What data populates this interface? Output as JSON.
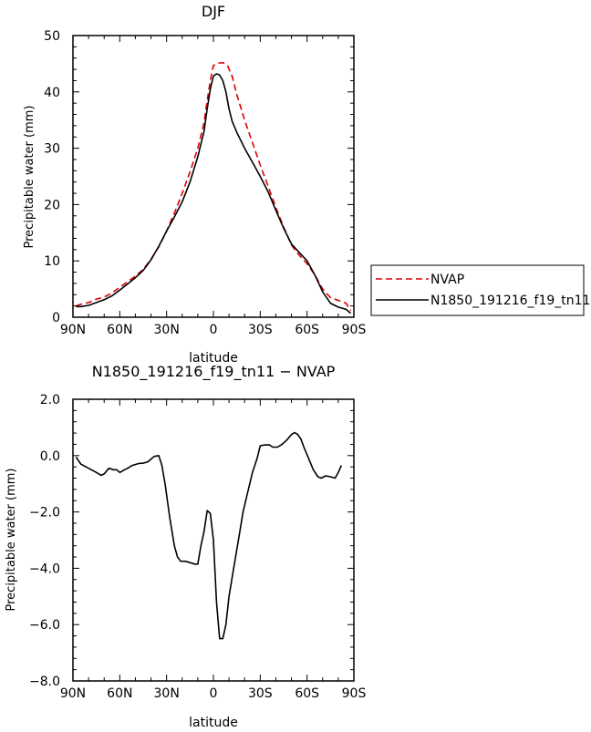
{
  "chart_data": [
    {
      "type": "line",
      "title": "DJF",
      "xlabel": "latitude",
      "ylabel": "Precipitable water (mm)",
      "xlim": [
        -90,
        90
      ],
      "ylim": [
        0,
        50
      ],
      "x_reversed": true,
      "xticks": [
        -90,
        -60,
        -30,
        0,
        30,
        60,
        90
      ],
      "xtick_labels": [
        "90N",
        "60N",
        "30N",
        "0",
        "30S",
        "60S",
        "90S"
      ],
      "yticks": [
        0,
        10,
        20,
        30,
        40,
        50
      ],
      "ytick_labels": [
        "0",
        "10",
        "20",
        "30",
        "40",
        "50"
      ],
      "grid": false,
      "legend_position": "right",
      "series": [
        {
          "name": "NVAP",
          "color": "#dd0000",
          "dash": "dashed",
          "points": [
            [
              -88,
              2.0
            ],
            [
              -85,
              2.3
            ],
            [
              -80,
              2.6
            ],
            [
              -75,
              3.2
            ],
            [
              -70,
              3.6
            ],
            [
              -65,
              4.3
            ],
            [
              -60,
              5.3
            ],
            [
              -55,
              6.3
            ],
            [
              -50,
              7.3
            ],
            [
              -45,
              8.5
            ],
            [
              -40,
              10.3
            ],
            [
              -35,
              12.5
            ],
            [
              -30,
              15.3
            ],
            [
              -25,
              18.5
            ],
            [
              -20,
              22.0
            ],
            [
              -15,
              25.8
            ],
            [
              -10,
              30.0
            ],
            [
              -6,
              34.5
            ],
            [
              -4,
              38.5
            ],
            [
              -2,
              42.0
            ],
            [
              0,
              44.7
            ],
            [
              3,
              45.1
            ],
            [
              6,
              45.2
            ],
            [
              9,
              44.7
            ],
            [
              12,
              42.8
            ],
            [
              15,
              39.5
            ],
            [
              20,
              35.0
            ],
            [
              25,
              31.0
            ],
            [
              30,
              27.0
            ],
            [
              35,
              23.3
            ],
            [
              40,
              19.5
            ],
            [
              45,
              16.0
            ],
            [
              50,
              12.8
            ],
            [
              55,
              11.0
            ],
            [
              60,
              9.5
            ],
            [
              65,
              7.5
            ],
            [
              70,
              5.0
            ],
            [
              75,
              3.5
            ],
            [
              80,
              3.0
            ],
            [
              85,
              2.5
            ],
            [
              88,
              1.2
            ]
          ]
        },
        {
          "name": "N1850_191216_f19_tn11",
          "color": "#000000",
          "dash": "solid",
          "points": [
            [
              -88,
              1.9
            ],
            [
              -85,
              1.9
            ],
            [
              -80,
              2.1
            ],
            [
              -75,
              2.6
            ],
            [
              -70,
              3.1
            ],
            [
              -65,
              3.8
            ],
            [
              -60,
              4.8
            ],
            [
              -55,
              5.9
            ],
            [
              -50,
              7.0
            ],
            [
              -45,
              8.3
            ],
            [
              -40,
              10.2
            ],
            [
              -35,
              12.6
            ],
            [
              -30,
              15.3
            ],
            [
              -25,
              17.8
            ],
            [
              -20,
              20.5
            ],
            [
              -15,
              24.0
            ],
            [
              -10,
              28.5
            ],
            [
              -6,
              33.0
            ],
            [
              -4,
              37.0
            ],
            [
              -2,
              40.5
            ],
            [
              0,
              42.8
            ],
            [
              2,
              43.2
            ],
            [
              4,
              43.0
            ],
            [
              6,
              42.0
            ],
            [
              8,
              40.0
            ],
            [
              10,
              37.0
            ],
            [
              12,
              34.8
            ],
            [
              15,
              32.8
            ],
            [
              20,
              30.0
            ],
            [
              25,
              27.5
            ],
            [
              30,
              25.0
            ],
            [
              35,
              22.3
            ],
            [
              40,
              19.0
            ],
            [
              45,
              15.8
            ],
            [
              50,
              13.0
            ],
            [
              55,
              11.5
            ],
            [
              60,
              10.0
            ],
            [
              65,
              7.5
            ],
            [
              70,
              4.5
            ],
            [
              75,
              2.5
            ],
            [
              80,
              1.8
            ],
            [
              85,
              1.4
            ],
            [
              88,
              0.7
            ]
          ]
        }
      ]
    },
    {
      "type": "line",
      "title": "N1850_191216_f19_tn11 − NVAP",
      "xlabel": "latitude",
      "ylabel": "Precipitable water (mm)",
      "xlim": [
        -90,
        90
      ],
      "ylim": [
        -8,
        2
      ],
      "x_reversed": true,
      "xticks": [
        -90,
        -60,
        -30,
        0,
        30,
        60,
        90
      ],
      "xtick_labels": [
        "90N",
        "60N",
        "30N",
        "0",
        "30S",
        "60S",
        "90S"
      ],
      "yticks": [
        -8,
        -6,
        -4,
        -2,
        0,
        2
      ],
      "ytick_labels": [
        "−8.0",
        "−6.0",
        "−4.0",
        "−2.0",
        "0.0",
        "2.0"
      ],
      "grid": false,
      "series": [
        {
          "color": "#000000",
          "dash": "solid",
          "points": [
            [
              -88,
              -0.05
            ],
            [
              -85,
              -0.3
            ],
            [
              -80,
              -0.45
            ],
            [
              -75,
              -0.6
            ],
            [
              -72,
              -0.7
            ],
            [
              -70,
              -0.65
            ],
            [
              -67,
              -0.45
            ],
            [
              -64,
              -0.5
            ],
            [
              -62,
              -0.5
            ],
            [
              -60,
              -0.6
            ],
            [
              -57,
              -0.5
            ],
            [
              -55,
              -0.45
            ],
            [
              -52,
              -0.35
            ],
            [
              -48,
              -0.28
            ],
            [
              -45,
              -0.27
            ],
            [
              -42,
              -0.22
            ],
            [
              -38,
              -0.03
            ],
            [
              -35,
              0.0
            ],
            [
              -33,
              -0.35
            ],
            [
              -31,
              -1.0
            ],
            [
              -28,
              -2.2
            ],
            [
              -25,
              -3.2
            ],
            [
              -23,
              -3.6
            ],
            [
              -21,
              -3.75
            ],
            [
              -18,
              -3.75
            ],
            [
              -15,
              -3.8
            ],
            [
              -12,
              -3.85
            ],
            [
              -10,
              -3.85
            ],
            [
              -8,
              -3.2
            ],
            [
              -6,
              -2.7
            ],
            [
              -4,
              -1.95
            ],
            [
              -2,
              -2.05
            ],
            [
              0,
              -3.0
            ],
            [
              2,
              -5.2
            ],
            [
              4,
              -6.5
            ],
            [
              6,
              -6.5
            ],
            [
              8,
              -6.0
            ],
            [
              10,
              -5.0
            ],
            [
              13,
              -4.0
            ],
            [
              16,
              -3.0
            ],
            [
              19,
              -2.0
            ],
            [
              22,
              -1.3
            ],
            [
              25,
              -0.6
            ],
            [
              28,
              -0.1
            ],
            [
              30,
              0.35
            ],
            [
              33,
              0.38
            ],
            [
              36,
              0.38
            ],
            [
              38,
              0.3
            ],
            [
              41,
              0.3
            ],
            [
              44,
              0.4
            ],
            [
              47,
              0.55
            ],
            [
              50,
              0.75
            ],
            [
              52,
              0.82
            ],
            [
              54,
              0.75
            ],
            [
              56,
              0.6
            ],
            [
              58,
              0.3
            ],
            [
              61,
              -0.1
            ],
            [
              64,
              -0.5
            ],
            [
              67,
              -0.75
            ],
            [
              69,
              -0.8
            ],
            [
              72,
              -0.72
            ],
            [
              75,
              -0.75
            ],
            [
              78,
              -0.8
            ],
            [
              80,
              -0.6
            ],
            [
              82,
              -0.35
            ]
          ]
        }
      ]
    }
  ]
}
